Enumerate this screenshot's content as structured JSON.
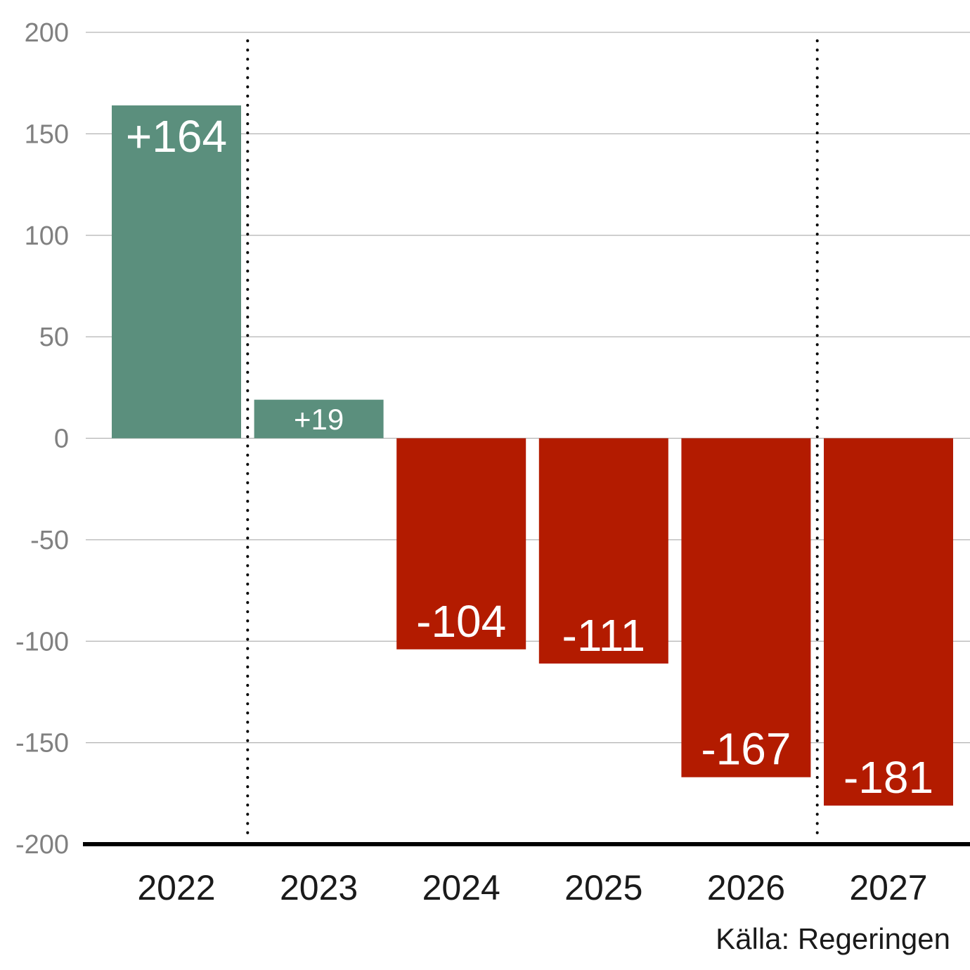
{
  "chart_data": {
    "type": "bar",
    "categories": [
      "2022",
      "2023",
      "2024",
      "2025",
      "2026",
      "2027"
    ],
    "values": [
      164,
      19,
      -104,
      -111,
      -167,
      -181
    ],
    "value_labels": [
      "+164",
      "+19",
      "-104",
      "-111",
      "-167",
      "-181"
    ],
    "ylim": [
      -200,
      200
    ],
    "yticks": [
      200,
      150,
      100,
      50,
      0,
      -50,
      -100,
      -150,
      -200
    ],
    "ytick_labels": [
      "200",
      "150",
      "100",
      "50",
      "0",
      "-50",
      "-100",
      "-150",
      "-200"
    ],
    "grid": true,
    "vertical_dividers_between": [
      [
        "2022",
        "2023"
      ],
      [
        "2026",
        "2027"
      ]
    ],
    "colors": {
      "positive": "#5b8f7d",
      "negative": "#b31b00",
      "grid": "#b3b3b3",
      "axis": "#000000"
    },
    "source": "Källa: Regeringen"
  }
}
